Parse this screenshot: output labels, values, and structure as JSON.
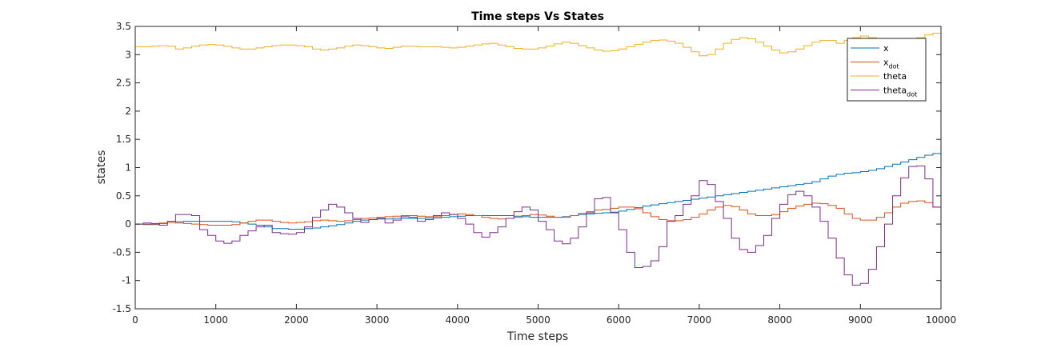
{
  "chart_data": {
    "type": "line",
    "title": "Time steps Vs States",
    "xlabel": "Time steps",
    "ylabel": "states",
    "xlim": [
      0,
      10000
    ],
    "ylim": [
      -1.5,
      3.5
    ],
    "xticks": [
      "0",
      "1000",
      "2000",
      "3000",
      "4000",
      "5000",
      "6000",
      "7000",
      "8000",
      "9000",
      "10000"
    ],
    "yticks": [
      "-1.5",
      "-1",
      "-0.5",
      "0",
      "0.5",
      "1",
      "1.5",
      "2",
      "2.5",
      "3",
      "3.5"
    ],
    "grid": false,
    "legend_location": "top-right",
    "step_width": 100,
    "series": [
      {
        "name": "x",
        "name_main": "x",
        "name_sub": "",
        "color": "#0072BD",
        "values": [
          0,
          -0.01,
          -0.01,
          0.01,
          0.03,
          0.04,
          0.05,
          0.05,
          0.05,
          0.05,
          0.05,
          0.05,
          0.04,
          0.02,
          0,
          -0.02,
          -0.05,
          -0.08,
          -0.08,
          -0.09,
          -0.09,
          -0.08,
          -0.07,
          -0.05,
          -0.03,
          -0.01,
          0.02,
          0.05,
          0.07,
          0.08,
          0.09,
          0.09,
          0.1,
          0.1,
          0.1,
          0.1,
          0.11,
          0.11,
          0.12,
          0.13,
          0.14,
          0.15,
          0.15,
          0.15,
          0.15,
          0.15,
          0.15,
          0.14,
          0.13,
          0.12,
          0.12,
          0.12,
          0.12,
          0.13,
          0.15,
          0.17,
          0.18,
          0.19,
          0.2,
          0.21,
          0.23,
          0.26,
          0.29,
          0.32,
          0.34,
          0.36,
          0.38,
          0.4,
          0.42,
          0.44,
          0.46,
          0.48,
          0.5,
          0.52,
          0.54,
          0.56,
          0.58,
          0.6,
          0.62,
          0.64,
          0.66,
          0.68,
          0.7,
          0.72,
          0.75,
          0.8,
          0.85,
          0.88,
          0.9,
          0.91,
          0.93,
          0.95,
          0.98,
          1.02,
          1.06,
          1.1,
          1.14,
          1.18,
          1.22,
          1.25,
          1.27
        ]
      },
      {
        "name": "x_dot",
        "name_main": "x",
        "name_sub": "dot",
        "color": "#D95319",
        "values": [
          0,
          0,
          0,
          0.02,
          0.03,
          0.02,
          0.01,
          0,
          -0.01,
          -0.02,
          -0.02,
          -0.02,
          -0.01,
          0.02,
          0.05,
          0.07,
          0.07,
          0.05,
          0.03,
          0.02,
          0.03,
          0.04,
          0.06,
          0.07,
          0.06,
          0.05,
          0.06,
          0.08,
          0.1,
          0.11,
          0.12,
          0.13,
          0.14,
          0.15,
          0.15,
          0.14,
          0.13,
          0.13,
          0.15,
          0.17,
          0.18,
          0.17,
          0.15,
          0.12,
          0.1,
          0.09,
          0.1,
          0.12,
          0.15,
          0.17,
          0.16,
          0.14,
          0.12,
          0.12,
          0.15,
          0.19,
          0.22,
          0.25,
          0.26,
          0.28,
          0.3,
          0.3,
          0.27,
          0.2,
          0.13,
          0.08,
          0.06,
          0.06,
          0.08,
          0.12,
          0.18,
          0.25,
          0.3,
          0.33,
          0.31,
          0.25,
          0.18,
          0.15,
          0.15,
          0.17,
          0.22,
          0.28,
          0.32,
          0.35,
          0.37,
          0.36,
          0.33,
          0.28,
          0.18,
          0.1,
          0.07,
          0.07,
          0.12,
          0.2,
          0.3,
          0.37,
          0.4,
          0.41,
          0.38,
          0.3,
          0.22
        ]
      },
      {
        "name": "theta",
        "name_main": "theta",
        "name_sub": "",
        "color": "#EDB120",
        "values": [
          3.14,
          3.14,
          3.15,
          3.16,
          3.15,
          3.1,
          3.12,
          3.15,
          3.17,
          3.18,
          3.17,
          3.15,
          3.12,
          3.1,
          3.1,
          3.12,
          3.14,
          3.16,
          3.17,
          3.17,
          3.16,
          3.14,
          3.1,
          3.08,
          3.1,
          3.12,
          3.15,
          3.17,
          3.16,
          3.14,
          3.12,
          3.11,
          3.13,
          3.15,
          3.15,
          3.14,
          3.14,
          3.14,
          3.13,
          3.12,
          3.13,
          3.15,
          3.17,
          3.19,
          3.2,
          3.17,
          3.14,
          3.11,
          3.1,
          3.1,
          3.12,
          3.15,
          3.19,
          3.22,
          3.2,
          3.16,
          3.12,
          3.08,
          3.06,
          3.07,
          3.1,
          3.14,
          3.18,
          3.22,
          3.25,
          3.26,
          3.24,
          3.2,
          3.13,
          3.05,
          2.98,
          3.0,
          3.1,
          3.2,
          3.27,
          3.3,
          3.28,
          3.22,
          3.15,
          3.08,
          3.03,
          3.05,
          3.1,
          3.16,
          3.22,
          3.25,
          3.25,
          3.2,
          3.25,
          3.3,
          3.33,
          3.3,
          3.24,
          3.2,
          3.18,
          3.2,
          3.25,
          3.3,
          3.35,
          3.38,
          3.38
        ]
      },
      {
        "name": "theta_dot",
        "name_main": "theta",
        "name_sub": "dot",
        "color": "#7E2F8E",
        "values": [
          0,
          0.02,
          0.01,
          -0.02,
          0.05,
          0.17,
          0.17,
          0.15,
          -0.1,
          -0.2,
          -0.3,
          -0.34,
          -0.3,
          -0.2,
          -0.12,
          -0.05,
          -0.02,
          -0.15,
          -0.17,
          -0.18,
          -0.15,
          -0.05,
          0.12,
          0.25,
          0.35,
          0.3,
          0.2,
          0.1,
          0.03,
          0.08,
          0.1,
          0.02,
          0.07,
          0.13,
          0.12,
          0.05,
          0.08,
          0.15,
          0.2,
          0.17,
          0.1,
          0,
          -0.15,
          -0.23,
          -0.15,
          -0.05,
          0.1,
          0.22,
          0.3,
          0.25,
          0.05,
          -0.1,
          -0.3,
          -0.35,
          -0.25,
          -0.05,
          0.2,
          0.45,
          0.47,
          0.2,
          -0.1,
          -0.5,
          -0.77,
          -0.75,
          -0.65,
          -0.4,
          0.05,
          0.15,
          0.35,
          0.5,
          0.77,
          0.7,
          0.4,
          0.1,
          -0.25,
          -0.45,
          -0.5,
          -0.38,
          -0.2,
          0.1,
          0.35,
          0.52,
          0.58,
          0.5,
          0.3,
          0.05,
          -0.25,
          -0.6,
          -0.9,
          -1.08,
          -1.05,
          -0.8,
          -0.4,
          0,
          0.5,
          0.82,
          1.02,
          1.03,
          0.8,
          0.3,
          -0.4
        ]
      }
    ]
  }
}
